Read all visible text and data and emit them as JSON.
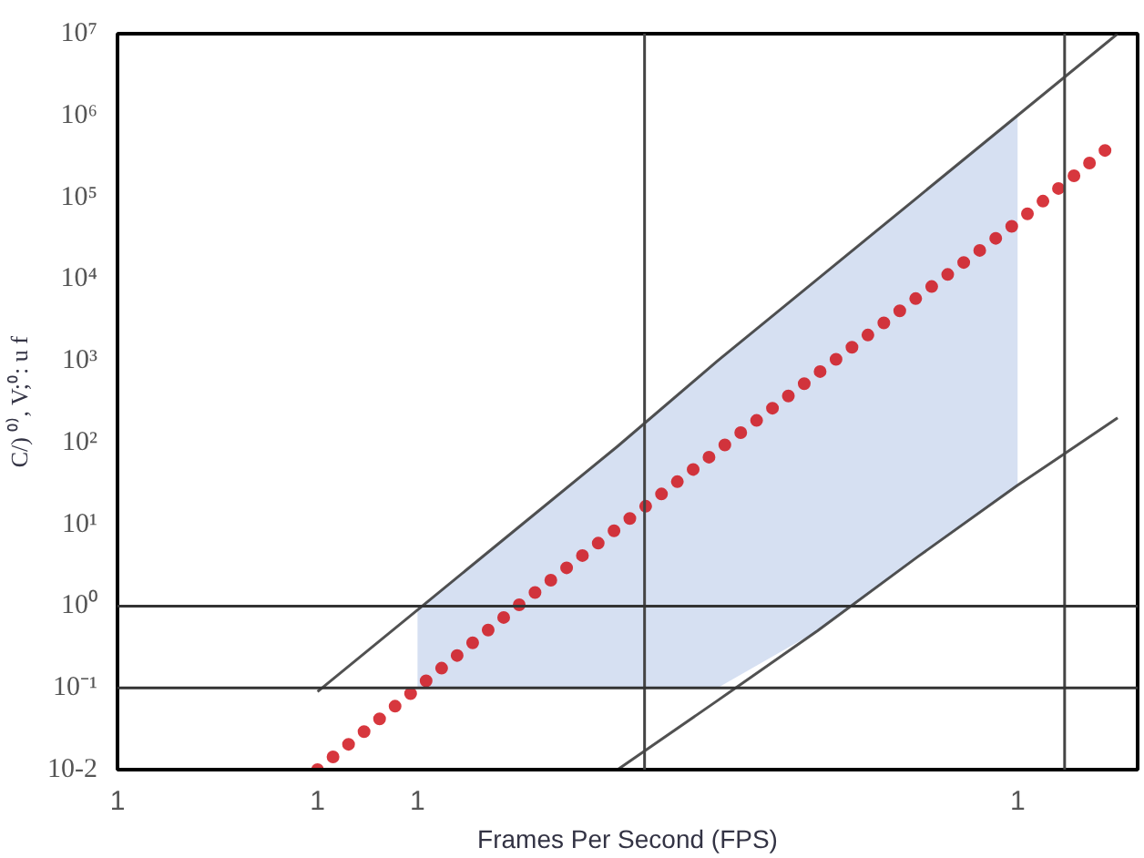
{
  "chart_data": {
    "type": "line",
    "xlabel": "Frames Per Second (FPS)",
    "ylabel": "C/) ⁰⁾, V;⁰: u f",
    "categories": [
      "1",
      null,
      "1",
      "1",
      null,
      null,
      null,
      null,
      null,
      "1",
      null
    ],
    "ylim": [
      0.01,
      10000000
    ],
    "yticks": [
      {
        "value": 0.01,
        "label": "10-2"
      },
      {
        "value": 0.1,
        "label": "10⁻¹"
      },
      {
        "value": 1,
        "label": "10⁰"
      },
      {
        "value": 10,
        "label": "10¹"
      },
      {
        "value": 100,
        "label": "10²"
      },
      {
        "value": 1000,
        "label": "10³"
      },
      {
        "value": 10000,
        "label": "10⁴"
      },
      {
        "value": 100000,
        "label": "10⁵"
      },
      {
        "value": 1000000,
        "label": "10⁶"
      },
      {
        "value": 10000000,
        "label": "10⁷"
      }
    ],
    "log": "y",
    "grid": false,
    "ref_lines": [
      {
        "axis": "y",
        "value": 1,
        "color": "#333333"
      },
      {
        "axis": "y",
        "value": 0.1,
        "color": "#333333"
      }
    ],
    "series": [
      {
        "color": "#d0141c",
        "line_style": "dotted",
        "values": [
          null,
          null,
          0.01,
          0.1,
          1,
          9,
          80,
          700,
          6000,
          50000,
          500000
        ],
        "lower": [
          null,
          null,
          null,
          0.1,
          0.1,
          0.1,
          0.1,
          0.5,
          4,
          30,
          null
        ],
        "upper": [
          null,
          null,
          null,
          0.9,
          9,
          90,
          1000,
          10000,
          100000,
          1000000,
          null
        ]
      },
      {
        "color": "#333333",
        "line_style": "solid",
        "values": [
          null,
          null,
          0.09,
          0.9,
          9,
          90,
          1000,
          10000,
          100000,
          1000000,
          10000000
        ]
      },
      {
        "color": "#333333",
        "line_style": "solid",
        "values": [
          null,
          null,
          null,
          null,
          null,
          0.01,
          0.07,
          0.5,
          4,
          30,
          200
        ]
      }
    ]
  }
}
